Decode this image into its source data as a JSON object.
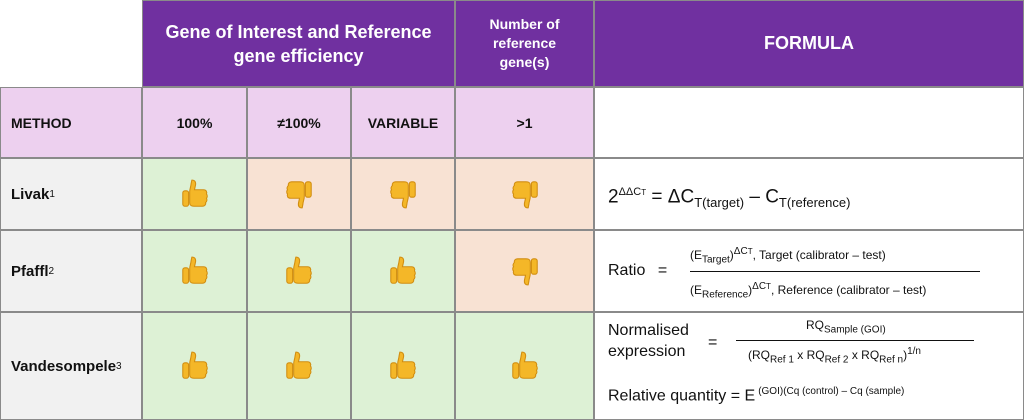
{
  "header": {
    "efficiency": "Gene of Interest and Reference gene efficiency",
    "num_ref": "Number of reference gene(s)",
    "formula": "FORMULA"
  },
  "subheader": {
    "method": "METHOD",
    "eff_100": "100%",
    "eff_not100": "≠100%",
    "variable": "VARIABLE",
    "gt1": ">1"
  },
  "rows": [
    {
      "name": "Livak",
      "ref": "1",
      "cells": [
        "up",
        "down",
        "down",
        "down"
      ]
    },
    {
      "name": "Pfaffl",
      "ref": "2",
      "cells": [
        "up",
        "up",
        "up",
        "down"
      ]
    },
    {
      "name": "Vandesompele",
      "ref": "3",
      "cells": [
        "up",
        "up",
        "up",
        "up"
      ]
    }
  ],
  "icons": {
    "up": "thumbs-up-icon",
    "down": "thumbs-down-icon"
  },
  "colors": {
    "header_purple": "#7030a0",
    "subheader_pink": "#edd0ef",
    "good_green": "#ddf1d5",
    "bad_peach": "#f8e2d3",
    "thumb_yellow": "#f4b728"
  },
  "formulas": {
    "livak": {
      "base": "2",
      "exp": "ΔΔC",
      "exp_sub": "T",
      "eq": "=",
      "dc": "ΔC",
      "sub_target": "T(target)",
      "minus": "–",
      "c": "C",
      "sub_ref": "T(reference)"
    },
    "pfaffl": {
      "ratio": "Ratio",
      "eq": "=",
      "num_open": "(E",
      "num_sub": "Target",
      "num_close": ")",
      "num_exp": "ΔC",
      "num_exp_sub": "T",
      "num_rest": ", Target (calibrator – test)",
      "den_open": "(E",
      "den_sub": "Reference",
      "den_close": ")",
      "den_exp": "ΔC",
      "den_exp_sub": "T",
      "den_rest": ", Reference (calibrator – test)"
    },
    "vandesompele": {
      "norm1": "Normalised",
      "norm2": "expression",
      "eq": "=",
      "rq": "RQ",
      "num_sub": "Sample (GOI)",
      "den_open": "(RQ",
      "ref1": "Ref 1",
      "x1": " x RQ",
      "ref2": "Ref 2",
      "x2": " x RQ",
      "refn": "Ref n",
      "den_close": ")",
      "den_exp": "1/n",
      "relq": "Relative  quantity  = E",
      "relq_exp": "(GOI)(Cq (control) – Cq (sample)"
    }
  }
}
